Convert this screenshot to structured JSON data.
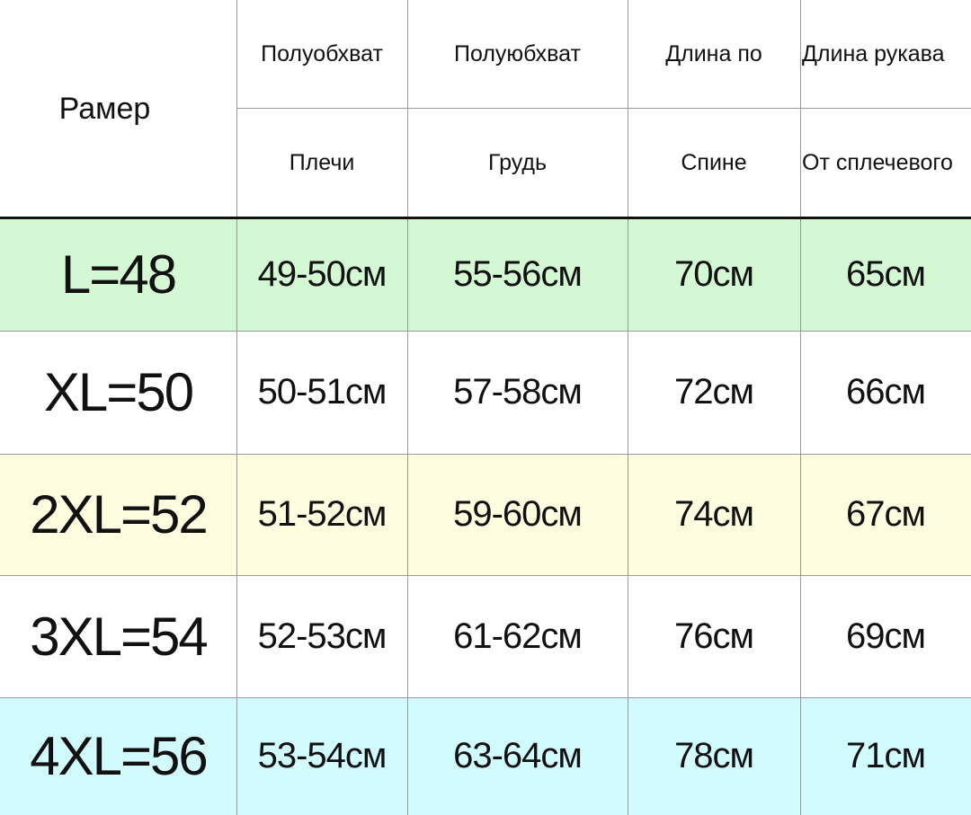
{
  "header": {
    "size_label": "Рамер",
    "columns": [
      {
        "top": "Полуобхват",
        "bottom": "Плечи"
      },
      {
        "top": "Полуюбхват",
        "bottom": "Грудь"
      },
      {
        "top": "Длина по",
        "bottom": "Спине"
      },
      {
        "top": "Длина рукава",
        "bottom": "От сплечевого"
      }
    ]
  },
  "rows": [
    {
      "size": "L=48",
      "values": [
        "49-50см",
        "55-56см",
        "70см",
        "65см"
      ]
    },
    {
      "size": "XL=50",
      "values": [
        "50-51см",
        "57-58см",
        "72см",
        "66см"
      ]
    },
    {
      "size": "2XL=52",
      "values": [
        "51-52см",
        "59-60см",
        "74см",
        "67см"
      ]
    },
    {
      "size": "3XL=54",
      "values": [
        "52-53см",
        "61-62см",
        "76см",
        "69см"
      ]
    },
    {
      "size": "4XL=56",
      "values": [
        "53-54см",
        "63-64см",
        "78см",
        "71см"
      ]
    }
  ]
}
